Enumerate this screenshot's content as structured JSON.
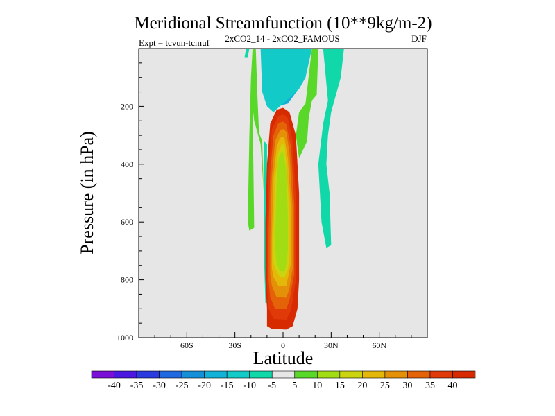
{
  "chart_data": {
    "type": "contour",
    "title": "Meridional Streamfunction (10**9kg/m-2)",
    "subtitle_left": "Expt = tcvun-tcmuf",
    "subtitle_center": "2xCO2_14 - 2xCO2_FAMOUS",
    "subtitle_right": "DJF",
    "xlabel": "Latitude",
    "ylabel": "Pressure (in hPa)",
    "x_ticks": [
      {
        "value": -60,
        "label": "60S"
      },
      {
        "value": -30,
        "label": "30S"
      },
      {
        "value": 0,
        "label": "0"
      },
      {
        "value": 30,
        "label": "30N"
      },
      {
        "value": 60,
        "label": "60N"
      }
    ],
    "y_ticks": [
      {
        "value": 200,
        "label": "200"
      },
      {
        "value": 400,
        "label": "400"
      },
      {
        "value": 600,
        "label": "600"
      },
      {
        "value": 800,
        "label": "800"
      },
      {
        "value": 1000,
        "label": "1000"
      }
    ],
    "xlim": [
      -90,
      90
    ],
    "ylim": [
      0,
      1000
    ],
    "y_inverted": true,
    "background_color": "#e6e6e6",
    "colorbar": {
      "levels": [
        "-40",
        "-35",
        "-30",
        "-25",
        "-20",
        "-15",
        "-10",
        "-5",
        "5",
        "10",
        "15",
        "20",
        "25",
        "30",
        "35",
        "40"
      ],
      "colors": [
        "#7a10d8",
        "#4a18e0",
        "#2a3ce0",
        "#1e68e0",
        "#1590d8",
        "#12b2d8",
        "#12cbc8",
        "#10d8a8",
        "#e6e6e6",
        "#5ad82a",
        "#a2dc12",
        "#ccd410",
        "#e4b808",
        "#e49008",
        "#e46208",
        "#e03a08",
        "#d82a00"
      ]
    },
    "regions": [
      {
        "name": "positive-cell",
        "value_level": "40+",
        "color_index": 16,
        "polygon": [
          [
            -10,
            960
          ],
          [
            -7,
            970
          ],
          [
            2,
            972
          ],
          [
            6,
            960
          ],
          [
            9,
            900
          ],
          [
            10,
            800
          ],
          [
            10,
            500
          ],
          [
            8,
            300
          ],
          [
            4,
            220
          ],
          [
            0,
            205
          ],
          [
            -4,
            212
          ],
          [
            -8,
            260
          ],
          [
            -10,
            400
          ],
          [
            -11,
            600
          ],
          [
            -11,
            800
          ],
          [
            -10,
            900
          ]
        ]
      },
      {
        "name": "positive-cell-35",
        "value_level": "35",
        "color_index": 15,
        "polygon": [
          [
            -9,
            900
          ],
          [
            -6,
            935
          ],
          [
            2,
            938
          ],
          [
            5,
            905
          ],
          [
            8,
            800
          ],
          [
            8,
            520
          ],
          [
            6,
            320
          ],
          [
            3,
            240
          ],
          [
            0,
            228
          ],
          [
            -3,
            234
          ],
          [
            -7,
            280
          ],
          [
            -9,
            420
          ],
          [
            -10,
            620
          ],
          [
            -10,
            820
          ]
        ]
      },
      {
        "name": "positive-cell-30",
        "value_level": "30",
        "color_index": 14,
        "polygon": [
          [
            -8,
            860
          ],
          [
            -5,
            900
          ],
          [
            2,
            902
          ],
          [
            4,
            870
          ],
          [
            7,
            780
          ],
          [
            7,
            540
          ],
          [
            5,
            340
          ],
          [
            2,
            262
          ],
          [
            0,
            252
          ],
          [
            -3,
            258
          ],
          [
            -6,
            300
          ],
          [
            -8,
            430
          ],
          [
            -9,
            640
          ],
          [
            -9,
            800
          ]
        ]
      },
      {
        "name": "positive-cell-25",
        "value_level": "25",
        "color_index": 13,
        "polygon": [
          [
            -7,
            820
          ],
          [
            -4,
            860
          ],
          [
            2,
            862
          ],
          [
            4,
            830
          ],
          [
            6,
            760
          ],
          [
            6,
            550
          ],
          [
            4,
            360
          ],
          [
            2,
            288
          ],
          [
            0,
            278
          ],
          [
            -2,
            284
          ],
          [
            -5,
            320
          ],
          [
            -7,
            440
          ],
          [
            -8,
            650
          ],
          [
            -8,
            780
          ]
        ]
      },
      {
        "name": "positive-cell-20",
        "value_level": "20",
        "color_index": 12,
        "polygon": [
          [
            -6,
            790
          ],
          [
            -3,
            820
          ],
          [
            2,
            822
          ],
          [
            3,
            795
          ],
          [
            5,
            740
          ],
          [
            5,
            560
          ],
          [
            3,
            380
          ],
          [
            1,
            312
          ],
          [
            0,
            304
          ],
          [
            -2,
            310
          ],
          [
            -4,
            340
          ],
          [
            -6,
            450
          ],
          [
            -7,
            660
          ],
          [
            -7,
            760
          ]
        ]
      },
      {
        "name": "positive-cell-15",
        "value_level": "15",
        "color_index": 11,
        "polygon": [
          [
            -5,
            760
          ],
          [
            -2,
            790
          ],
          [
            1,
            792
          ],
          [
            3,
            765
          ],
          [
            4,
            720
          ],
          [
            4,
            570
          ],
          [
            2,
            400
          ],
          [
            1,
            336
          ],
          [
            0,
            330
          ],
          [
            -1,
            334
          ],
          [
            -3,
            360
          ],
          [
            -5,
            460
          ],
          [
            -6,
            670
          ],
          [
            -6,
            740
          ]
        ]
      },
      {
        "name": "positive-cell-core",
        "value_level": "10",
        "color_index": 10,
        "polygon": [
          [
            -4,
            740
          ],
          [
            -2,
            770
          ],
          [
            1,
            770
          ],
          [
            2,
            745
          ],
          [
            3,
            700
          ],
          [
            3,
            580
          ],
          [
            2,
            420
          ],
          [
            0,
            356
          ],
          [
            -1,
            358
          ],
          [
            -3,
            380
          ],
          [
            -4,
            470
          ],
          [
            -5,
            680
          ]
        ]
      }
    ],
    "contours_other": [
      {
        "name": "neg-upper-core",
        "color_index": 0,
        "polygon": [
          [
            -4,
            0
          ],
          [
            -2,
            25
          ],
          [
            0,
            30
          ],
          [
            2,
            22
          ],
          [
            6,
            10
          ],
          [
            8,
            0
          ]
        ]
      },
      {
        "name": "neg-upper-35",
        "color_index": 1,
        "polygon": [
          [
            -6,
            0
          ],
          [
            -4,
            40
          ],
          [
            -2,
            60
          ],
          [
            0,
            62
          ],
          [
            2,
            50
          ],
          [
            5,
            35
          ],
          [
            10,
            20
          ],
          [
            12,
            0
          ]
        ]
      },
      {
        "name": "neg-upper-30",
        "color_index": 2,
        "polygon": [
          [
            -8,
            0
          ],
          [
            -6,
            60
          ],
          [
            -3,
            90
          ],
          [
            0,
            95
          ],
          [
            3,
            85
          ],
          [
            6,
            60
          ],
          [
            10,
            40
          ],
          [
            14,
            0
          ]
        ]
      },
      {
        "name": "neg-upper-25",
        "color_index": 3,
        "polygon": [
          [
            -9,
            0
          ],
          [
            -7,
            80
          ],
          [
            -4,
            120
          ],
          [
            0,
            130
          ],
          [
            3,
            120
          ],
          [
            6,
            90
          ],
          [
            11,
            60
          ],
          [
            15,
            0
          ]
        ]
      },
      {
        "name": "neg-upper-20",
        "color_index": 4,
        "polygon": [
          [
            -10,
            0
          ],
          [
            -9,
            100
          ],
          [
            -6,
            150
          ],
          [
            0,
            165
          ],
          [
            4,
            150
          ],
          [
            7,
            120
          ],
          [
            12,
            80
          ],
          [
            16,
            0
          ]
        ]
      },
      {
        "name": "neg-upper-15",
        "color_index": 5,
        "polygon": [
          [
            -12,
            0
          ],
          [
            -11,
            120
          ],
          [
            -8,
            180
          ],
          [
            -3,
            200
          ],
          [
            3,
            190
          ],
          [
            7,
            160
          ],
          [
            12,
            120
          ],
          [
            17,
            0
          ]
        ]
      },
      {
        "name": "neg-upper-10",
        "color_index": 6,
        "polygon": [
          [
            -14,
            0
          ],
          [
            -13,
            150
          ],
          [
            -10,
            200
          ],
          [
            -6,
            220
          ],
          [
            -2,
            200
          ],
          [
            4,
            170
          ],
          [
            10,
            140
          ],
          [
            14,
            100
          ],
          [
            18,
            0
          ]
        ]
      },
      {
        "name": "pos-left-strip",
        "color_index": 9,
        "polygon": [
          [
            -19,
            0
          ],
          [
            -17,
            0
          ],
          [
            -16,
            160
          ],
          [
            -15,
            290
          ],
          [
            -13,
            320
          ],
          [
            -12,
            500
          ],
          [
            -10,
            800
          ],
          [
            -9,
            880
          ],
          [
            -10,
            960
          ],
          [
            -8,
            960
          ],
          [
            -10,
            700
          ],
          [
            -12,
            500
          ],
          [
            -14,
            330
          ],
          [
            -18,
            250
          ],
          [
            -19,
            200
          ],
          [
            -18,
            620
          ],
          [
            -21,
            630
          ],
          [
            -22,
            600
          ],
          [
            -21,
            300
          ],
          [
            -20,
            100
          ]
        ]
      },
      {
        "name": "neg-left-strip",
        "color_index": 7,
        "polygon": [
          [
            -12,
            320
          ],
          [
            -10,
            330
          ],
          [
            -10,
            600
          ],
          [
            -10,
            880
          ],
          [
            -11,
            880
          ],
          [
            -12,
            700
          ]
        ]
      },
      {
        "name": "neg-right-column",
        "color_index": 7,
        "polygon": [
          [
            25,
            0
          ],
          [
            38,
            0
          ],
          [
            36,
            100
          ],
          [
            30,
            220
          ],
          [
            28,
            300
          ],
          [
            27,
            400
          ],
          [
            29,
            500
          ],
          [
            30,
            680
          ],
          [
            27,
            690
          ],
          [
            24,
            600
          ],
          [
            22,
            400
          ],
          [
            25,
            260
          ],
          [
            28,
            180
          ]
        ]
      },
      {
        "name": "pos-right-strip",
        "color_index": 9,
        "polygon": [
          [
            18,
            0
          ],
          [
            22,
            0
          ],
          [
            21,
            160
          ],
          [
            18,
            180
          ],
          [
            16,
            240
          ],
          [
            15,
            320
          ],
          [
            10,
            380
          ],
          [
            8,
            300
          ],
          [
            10,
            220
          ],
          [
            14,
            190
          ]
        ]
      },
      {
        "name": "neg-small-left",
        "color_index": 7,
        "polygon": [
          [
            -23,
            0
          ],
          [
            -21,
            0
          ],
          [
            -22,
            30
          ],
          [
            -24,
            30
          ]
        ]
      }
    ]
  }
}
